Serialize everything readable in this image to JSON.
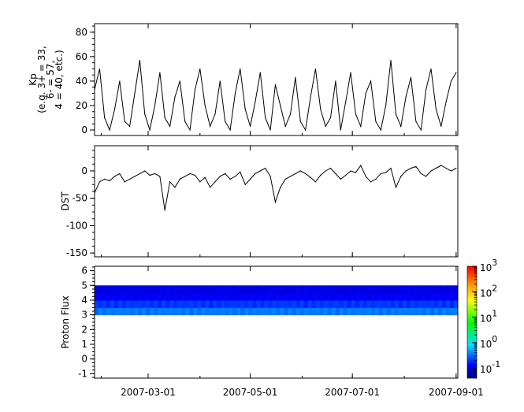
{
  "chart_data": [
    {
      "type": "line",
      "ylabel_lines": [
        "Kp",
        "(e.g. 3+ = 33,",
        "6- = 57,",
        "4 = 40, etc.)"
      ],
      "ylim": [
        -4.5,
        87
      ],
      "yticks": [
        0,
        20,
        40,
        60,
        80
      ],
      "x": [
        "2007-01-28",
        "2007-01-31",
        "2007-02-03",
        "2007-02-06",
        "2007-02-09",
        "2007-02-12",
        "2007-02-15",
        "2007-02-18",
        "2007-02-21",
        "2007-02-24",
        "2007-02-27",
        "2007-03-02",
        "2007-03-05",
        "2007-03-08",
        "2007-03-11",
        "2007-03-14",
        "2007-03-17",
        "2007-03-20",
        "2007-03-23",
        "2007-03-26",
        "2007-03-29",
        "2007-04-01",
        "2007-04-04",
        "2007-04-07",
        "2007-04-10",
        "2007-04-13",
        "2007-04-16",
        "2007-04-19",
        "2007-04-22",
        "2007-04-25",
        "2007-04-28",
        "2007-05-01",
        "2007-05-04",
        "2007-05-07",
        "2007-05-10",
        "2007-05-13",
        "2007-05-16",
        "2007-05-19",
        "2007-05-22",
        "2007-05-25",
        "2007-05-28",
        "2007-05-31",
        "2007-06-03",
        "2007-06-06",
        "2007-06-09",
        "2007-06-12",
        "2007-06-15",
        "2007-06-18",
        "2007-06-21",
        "2007-06-24",
        "2007-06-27",
        "2007-06-30",
        "2007-07-03",
        "2007-07-06",
        "2007-07-09",
        "2007-07-12",
        "2007-07-15",
        "2007-07-18",
        "2007-07-21",
        "2007-07-24",
        "2007-07-27",
        "2007-07-30",
        "2007-08-02",
        "2007-08-05",
        "2007-08-08",
        "2007-08-11",
        "2007-08-14",
        "2007-08-17",
        "2007-08-20",
        "2007-08-23",
        "2007-08-26",
        "2007-08-29",
        "2007-09-01"
      ],
      "values": [
        33,
        50,
        10,
        0,
        17,
        40,
        7,
        3,
        30,
        57,
        13,
        0,
        20,
        47,
        10,
        3,
        27,
        40,
        7,
        0,
        33,
        50,
        20,
        3,
        13,
        40,
        7,
        0,
        30,
        50,
        17,
        3,
        23,
        47,
        10,
        0,
        37,
        20,
        3,
        13,
        43,
        7,
        0,
        27,
        50,
        17,
        3,
        10,
        40,
        0,
        23,
        47,
        13,
        3,
        30,
        40,
        7,
        0,
        20,
        57,
        13,
        3,
        27,
        43,
        7,
        0,
        33,
        50,
        17,
        3,
        23,
        40,
        47
      ]
    },
    {
      "type": "line",
      "ylabel": "DST",
      "ylim": [
        -157,
        46
      ],
      "yticks": [
        -150,
        -100,
        -50,
        0
      ],
      "values": [
        -40,
        -20,
        -15,
        -18,
        -10,
        -5,
        -20,
        -15,
        -10,
        -5,
        0,
        -8,
        -5,
        -10,
        -72,
        -20,
        -30,
        -15,
        -10,
        -5,
        -8,
        -20,
        -12,
        -30,
        -20,
        -10,
        -5,
        -15,
        -10,
        -2,
        -25,
        -15,
        -5,
        0,
        5,
        -10,
        -57,
        -30,
        -15,
        -10,
        -5,
        0,
        -5,
        -12,
        -20,
        -8,
        0,
        5,
        -5,
        -15,
        -8,
        0,
        -3,
        10,
        -10,
        -20,
        -15,
        -5,
        -3,
        5,
        -30,
        -10,
        0,
        5,
        8,
        -5,
        -10,
        0,
        5,
        10,
        5,
        0,
        5
      ]
    },
    {
      "type": "heatmap",
      "ylabel": "Proton Flux",
      "ylim": [
        -1.3,
        6.3
      ],
      "yticks": [
        -1,
        0,
        1,
        2,
        3,
        4,
        5,
        6
      ],
      "y_bins": [
        [
          3.0,
          3.5
        ],
        [
          3.5,
          4.0
        ],
        [
          4.0,
          4.5
        ],
        [
          4.5,
          5.0
        ]
      ],
      "z_typical": [
        0.35,
        0.2,
        0.12,
        0.1
      ],
      "colorbar": {
        "scale": "log",
        "range": [
          0.04,
          1000
        ],
        "tick_labels": [
          "10",
          "10",
          "10",
          "10",
          "10"
        ],
        "tick_exponents": [
          "-1",
          "0",
          "1",
          "2",
          "3"
        ],
        "tick_values": [
          0.1,
          1,
          10,
          100,
          1000
        ]
      }
    }
  ],
  "x_axis": {
    "range": [
      "2007-01-28",
      "2007-09-02"
    ],
    "tick_labels": [
      "2007-03-01",
      "2007-05-01",
      "2007-07-01",
      "2007-09-01"
    ]
  }
}
